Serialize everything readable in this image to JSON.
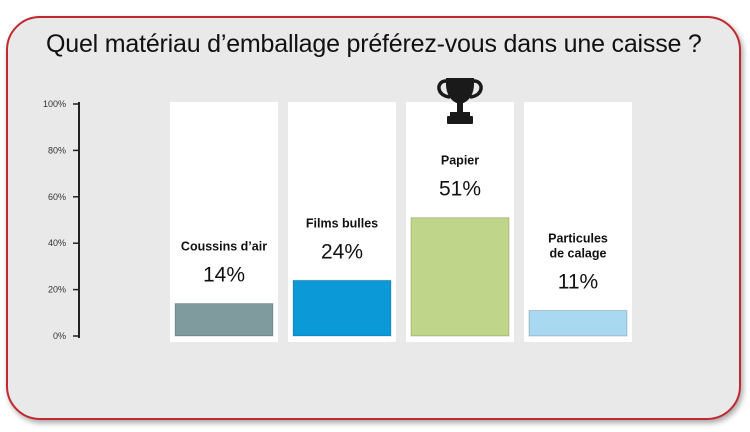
{
  "chart_data": {
    "type": "bar",
    "title": "Quel matériau d’emballage préférez-vous dans une caisse ?",
    "categories": [
      "Coussins d’air",
      "Films bulles",
      "Papier",
      "Particules de calage"
    ],
    "category_lines": [
      [
        "Coussins d’air"
      ],
      [
        "Films bulles"
      ],
      [
        "Papier"
      ],
      [
        "Particules",
        "de calage"
      ]
    ],
    "values": [
      14,
      24,
      51,
      11
    ],
    "value_labels": [
      "14%",
      "24%",
      "51%",
      "11%"
    ],
    "colors": [
      "#7f9b9d",
      "#0b99d7",
      "#bfd589",
      "#a9d8f1"
    ],
    "yticks": [
      "0%",
      "20%",
      "40%",
      "60%",
      "80%",
      "100%"
    ],
    "ylim": [
      0,
      100
    ],
    "winner_icon": "trophy-icon",
    "grid": false
  }
}
